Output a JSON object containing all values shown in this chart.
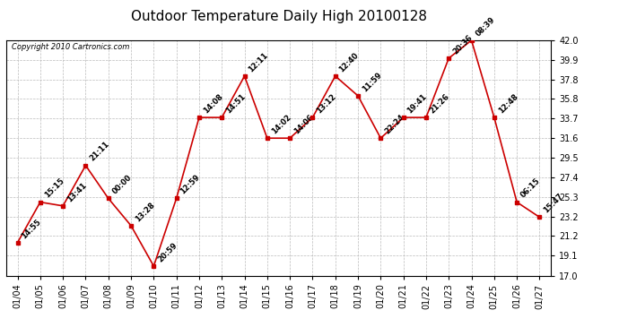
{
  "title": "Outdoor Temperature Daily High 20100128",
  "copyright_text": "Copyright 2010 Cartronics.com",
  "dates": [
    "01/04",
    "01/05",
    "01/06",
    "01/07",
    "01/08",
    "01/09",
    "01/10",
    "01/11",
    "01/12",
    "01/13",
    "01/14",
    "01/15",
    "01/16",
    "01/17",
    "01/18",
    "01/19",
    "01/20",
    "01/21",
    "01/22",
    "01/23",
    "01/24",
    "01/25",
    "01/26",
    "01/27"
  ],
  "values": [
    20.5,
    24.8,
    24.4,
    28.7,
    25.2,
    22.3,
    18.0,
    25.2,
    33.8,
    33.8,
    38.2,
    31.6,
    31.6,
    33.8,
    38.2,
    36.1,
    31.6,
    33.8,
    33.8,
    40.1,
    42.0,
    33.8,
    24.8,
    23.2
  ],
  "times": [
    "14:55",
    "15:15",
    "13:41",
    "21:11",
    "00:00",
    "13:28",
    "20:59",
    "12:59",
    "14:08",
    "14:51",
    "12:11",
    "14:02",
    "14:06",
    "13:12",
    "12:40",
    "11:59",
    "22:24",
    "19:41",
    "21:26",
    "20:36",
    "08:39",
    "12:48",
    "06:15",
    "15:47"
  ],
  "ylim": [
    17.0,
    42.0
  ],
  "yticks": [
    17.0,
    19.1,
    21.2,
    23.2,
    25.3,
    27.4,
    29.5,
    31.6,
    33.7,
    35.8,
    37.8,
    39.9,
    42.0
  ],
  "line_color": "#cc0000",
  "marker_color": "#cc0000",
  "bg_color": "#ffffff",
  "grid_color": "#bbbbbb",
  "title_fontsize": 11,
  "copyright_fontsize": 6,
  "label_fontsize": 6,
  "tick_fontsize": 7
}
